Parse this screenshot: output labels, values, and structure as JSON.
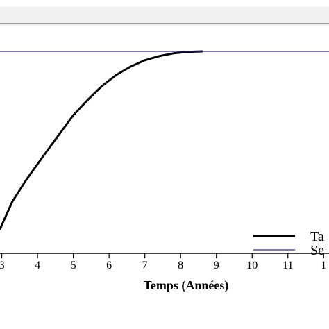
{
  "chart_data": {
    "type": "line",
    "title": "",
    "xlabel": "Temps (Années)",
    "ylabel": "",
    "xlim": [
      2.95,
      12.15
    ],
    "ylim": [
      0,
      1
    ],
    "grid": false,
    "x_ticks": [
      "3",
      "4",
      "5",
      "6",
      "7",
      "8",
      "9",
      "10",
      "11",
      "1"
    ],
    "legend": {
      "placement": "bottom-right",
      "entries": [
        {
          "label": "Ta",
          "color": "#000000"
        },
        {
          "label": "Se",
          "color": "#2b2b8a"
        }
      ]
    },
    "series": [
      {
        "label_ref": 0,
        "color": "#000000",
        "x": [
          2.95,
          3.3,
          3.7,
          4.2,
          4.6,
          5.0,
          5.4,
          5.8,
          6.2,
          6.6,
          7.0,
          7.4,
          7.8,
          8.2,
          8.6
        ],
        "y": [
          0.3,
          0.4,
          0.48,
          0.57,
          0.64,
          0.71,
          0.765,
          0.815,
          0.855,
          0.885,
          0.908,
          0.923,
          0.933,
          0.938,
          0.94
        ]
      },
      {
        "label_ref": 1,
        "color": "#2b2b8a",
        "x": [
          2.95,
          12.15
        ],
        "y": [
          0.94,
          0.94
        ]
      }
    ],
    "reference_line": {
      "y": 1.04,
      "color": "#555555"
    }
  },
  "colors": {
    "top_band": "#efefef",
    "axis": "#000000"
  }
}
